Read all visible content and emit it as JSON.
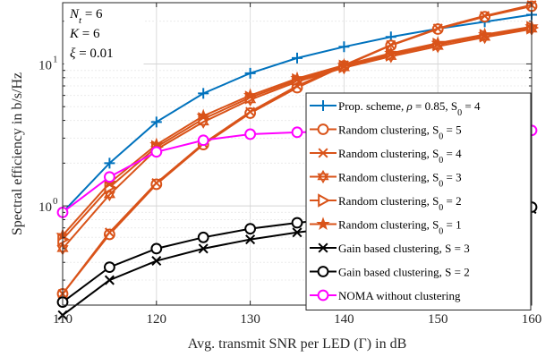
{
  "chart_data": {
    "type": "line",
    "xlabel": "Avg. transmit SNR per LED (Γ) in dB",
    "ylabel": "Spectral efficiency in b/s/Hz",
    "xlim": [
      110,
      160
    ],
    "ylim": [
      0.2,
      27
    ],
    "yscale": "log",
    "x_ticks": [
      110,
      120,
      130,
      140,
      150,
      160
    ],
    "y_ticks": [
      {
        "value": 1,
        "base": "10",
        "exp": "0"
      },
      {
        "value": 10,
        "base": "10",
        "exp": "1"
      }
    ],
    "grid": true,
    "legend_position": "right",
    "annotations": [
      "N_t = 6",
      "K = 6",
      "ξ = 0.01"
    ],
    "x": [
      110,
      115,
      120,
      125,
      130,
      135,
      140,
      145,
      150,
      155,
      160
    ],
    "series": [
      {
        "name": "Prop. scheme, ρ = 0.85, S_0 = 4",
        "label_parts": [
          "Prop. scheme, ",
          "ρ",
          " = 0.85, S",
          "0",
          " = 4"
        ],
        "color": "#0072BD",
        "marker": "plus",
        "values": [
          0.9,
          2.0,
          3.9,
          6.2,
          8.6,
          11.0,
          13.2,
          15.5,
          17.7,
          19.8,
          22.2
        ]
      },
      {
        "name": "Random clustering, S_0 = 5",
        "label_parts": [
          "Random clustering, S",
          "0",
          " = 5"
        ],
        "color": "#D95319",
        "marker": "circle",
        "values": [
          0.24,
          0.63,
          1.42,
          2.7,
          4.5,
          6.8,
          9.7,
          13.5,
          17.6,
          21.5,
          25.5
        ]
      },
      {
        "name": "Random clustering, S_0 = 4",
        "label_parts": [
          "Random clustering, S",
          "0",
          " = 4"
        ],
        "color": "#D95319",
        "marker": "x",
        "values": [
          0.24,
          0.65,
          1.45,
          2.75,
          4.6,
          7.0,
          9.8,
          13.6,
          17.8,
          21.8,
          26.0
        ]
      },
      {
        "name": "Random clustering, S_0 = 3",
        "label_parts": [
          "Random clustering, S",
          "0",
          " = 3"
        ],
        "color": "#D95319",
        "marker": "hexagram",
        "values": [
          0.5,
          1.2,
          2.5,
          3.9,
          5.6,
          7.5,
          9.4,
          11.3,
          13.3,
          15.4,
          17.6
        ]
      },
      {
        "name": "Random clustering, S_0 = 2",
        "label_parts": [
          "Random clustering, S",
          "0",
          " = 2"
        ],
        "color": "#D95319",
        "marker": "triangle-right",
        "values": [
          0.58,
          1.35,
          2.6,
          4.1,
          5.8,
          7.7,
          9.6,
          11.6,
          13.7,
          15.8,
          18.0
        ]
      },
      {
        "name": "Random clustering, S_0 = 1",
        "label_parts": [
          "Random clustering, S",
          "0",
          " = 1"
        ],
        "color": "#D95319",
        "marker": "star",
        "values": [
          0.62,
          1.45,
          2.7,
          4.3,
          6.0,
          7.9,
          9.8,
          11.9,
          14.0,
          16.1,
          18.3
        ]
      },
      {
        "name": "Gain based clustering, S = 3",
        "label_parts": [
          "Gain based clustering, S = 3"
        ],
        "color": "#000000",
        "marker": "x",
        "values": [
          0.17,
          0.3,
          0.41,
          0.5,
          0.58,
          0.65,
          0.71,
          0.77,
          0.83,
          0.89,
          0.95
        ]
      },
      {
        "name": "Gain based clustering, S = 2",
        "label_parts": [
          "Gain based clustering, S = 2"
        ],
        "color": "#000000",
        "marker": "circle",
        "values": [
          0.21,
          0.37,
          0.5,
          0.6,
          0.69,
          0.76,
          0.82,
          0.87,
          0.91,
          0.95,
          0.98
        ]
      },
      {
        "name": "NOMA without clustering",
        "label_parts": [
          "NOMA without clustering"
        ],
        "color": "#FF00FF",
        "marker": "circle",
        "values": [
          0.9,
          1.6,
          2.4,
          2.9,
          3.2,
          3.3,
          3.35,
          3.38,
          3.4,
          3.4,
          3.4
        ]
      }
    ]
  }
}
